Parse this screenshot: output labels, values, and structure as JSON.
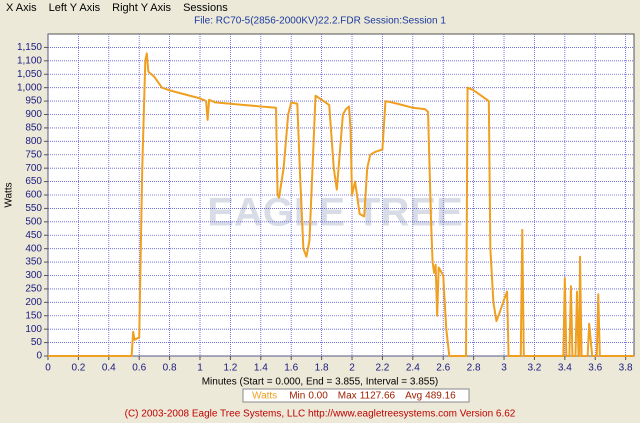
{
  "menu": [
    "X Axis",
    "Left Y Axis",
    "Right Y Axis",
    "Sessions"
  ],
  "watermark": "EAGLE TREE",
  "footer": "(C) 2003-2008 Eagle Tree Systems, LLC      http://www.eagletreesystems.com      Version 6.62",
  "chart_data": {
    "type": "line",
    "title": "File: RC70-5(2856-2000KV)22.2.FDR   Session:Session 1",
    "x_label": "Minutes (Start = 0.000, End = 3.855, Interval = 3.855)",
    "y_label": "Watts",
    "x": [
      0,
      0.55,
      0.56,
      0.57,
      0.6,
      0.62,
      0.64,
      0.65,
      0.66,
      0.7,
      0.75,
      0.8,
      0.9,
      1.0,
      1.04,
      1.05,
      1.06,
      1.1,
      1.2,
      1.3,
      1.4,
      1.5,
      1.51,
      1.52,
      1.55,
      1.58,
      1.6,
      1.64,
      1.66,
      1.68,
      1.7,
      1.72,
      1.74,
      1.76,
      1.8,
      1.85,
      1.88,
      1.9,
      1.92,
      1.94,
      1.96,
      1.98,
      1.99,
      2.0,
      2.02,
      2.05,
      2.08,
      2.1,
      2.12,
      2.15,
      2.2,
      2.22,
      2.3,
      2.4,
      2.48,
      2.5,
      2.52,
      2.53,
      2.54,
      2.55,
      2.56,
      2.57,
      2.6,
      2.62,
      2.64,
      2.75,
      2.76,
      2.8,
      2.85,
      2.9,
      2.91,
      2.93,
      2.95,
      2.97,
      3.0,
      3.02,
      3.03,
      3.11,
      3.12,
      3.13,
      3.39,
      3.4,
      3.41,
      3.43,
      3.44,
      3.45,
      3.47,
      3.48,
      3.49,
      3.495,
      3.5,
      3.51,
      3.55,
      3.56,
      3.58,
      3.61,
      3.62,
      3.63,
      3.855
    ],
    "series": [
      {
        "name": "Watts",
        "color": "#f0a020",
        "values": [
          0,
          0,
          90,
          60,
          70,
          700,
          1100,
          1127.66,
          1060,
          1040,
          1000,
          990,
          975,
          960,
          950,
          880,
          955,
          945,
          940,
          935,
          930,
          925,
          600,
          590,
          700,
          900,
          945,
          940,
          650,
          400,
          370,
          430,
          700,
          970,
          955,
          935,
          700,
          620,
          760,
          900,
          920,
          930,
          850,
          600,
          650,
          530,
          520,
          700,
          750,
          760,
          770,
          950,
          940,
          925,
          920,
          910,
          500,
          350,
          310,
          340,
          150,
          330,
          300,
          100,
          0,
          0,
          1000,
          990,
          970,
          950,
          400,
          200,
          130,
          160,
          210,
          240,
          0,
          0,
          470,
          0,
          0,
          290,
          0,
          0,
          260,
          0,
          0,
          240,
          0,
          0,
          370,
          0,
          0,
          120,
          0,
          0,
          230,
          0,
          0
        ]
      }
    ],
    "xlim": [
      0,
      3.855
    ],
    "ylim": [
      0,
      1200
    ],
    "xticks": [
      0,
      0.2,
      0.4,
      0.6,
      0.8,
      1,
      1.2,
      1.4,
      1.6,
      1.8,
      2,
      2.2,
      2.4,
      2.6,
      2.8,
      3,
      3.2,
      3.4,
      3.6,
      3.8
    ],
    "yticks": [
      0,
      50,
      100,
      150,
      200,
      250,
      300,
      350,
      400,
      450,
      500,
      550,
      600,
      650,
      700,
      750,
      800,
      850,
      900,
      950,
      {
        "value": 1000,
        "label": "1,000"
      },
      {
        "value": 1050,
        "label": "1,050"
      },
      {
        "value": 1100,
        "label": "1,100"
      },
      {
        "value": 1150,
        "label": "1,150"
      }
    ],
    "grid": true,
    "stats": {
      "labels": [
        "Min",
        "Max",
        "Avg"
      ],
      "values": [
        0,
        1127.66,
        489.16
      ],
      "value_labels": [
        "0.00",
        "1127.66",
        "489.16"
      ]
    }
  }
}
